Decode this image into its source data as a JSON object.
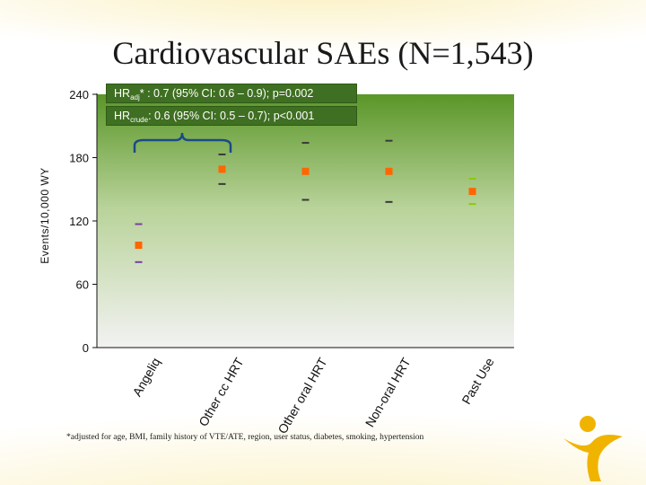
{
  "title": "Cardiovascular SAEs (N=1,543)",
  "hr_adj": {
    "prefix": "HR",
    "sub": "adj",
    "text": "* : 0.7 (95% CI: 0.6 – 0.9); p=0.002"
  },
  "hr_crude": {
    "prefix": "HR",
    "sub": "crude",
    "text": ": 0.6 (95% CI: 0.5 – 0.7); p<0.001"
  },
  "footnote": "*adjusted for age, BMI, family history of VTE/ATE, region, user status, diabetes, smoking, hypertension",
  "colors": {
    "point": "#ff6600",
    "angeliq_ci": "#7b3fa0",
    "other_ci": "#3a3a3a",
    "past_use_ci": "#88cc00",
    "panel_top": "#5e9a2c",
    "panel_bottom": "#f0f0f0"
  },
  "chart_data": {
    "type": "scatter",
    "title": "Cardiovascular SAEs (N=1,543)",
    "ylabel": "Events/10,000 WY",
    "ylim": [
      0,
      240
    ],
    "yticks": [
      0,
      60,
      120,
      180,
      240
    ],
    "categories": [
      "Angeliq",
      "Other cc HRT",
      "Other oral HRT",
      "Non-oral HRT",
      "Past Use"
    ],
    "estimates": [
      97,
      169,
      167,
      167,
      148
    ],
    "ci_lower": [
      81,
      155,
      140,
      138,
      136
    ],
    "ci_upper": [
      117,
      183,
      194,
      196,
      160
    ],
    "grid": false
  }
}
